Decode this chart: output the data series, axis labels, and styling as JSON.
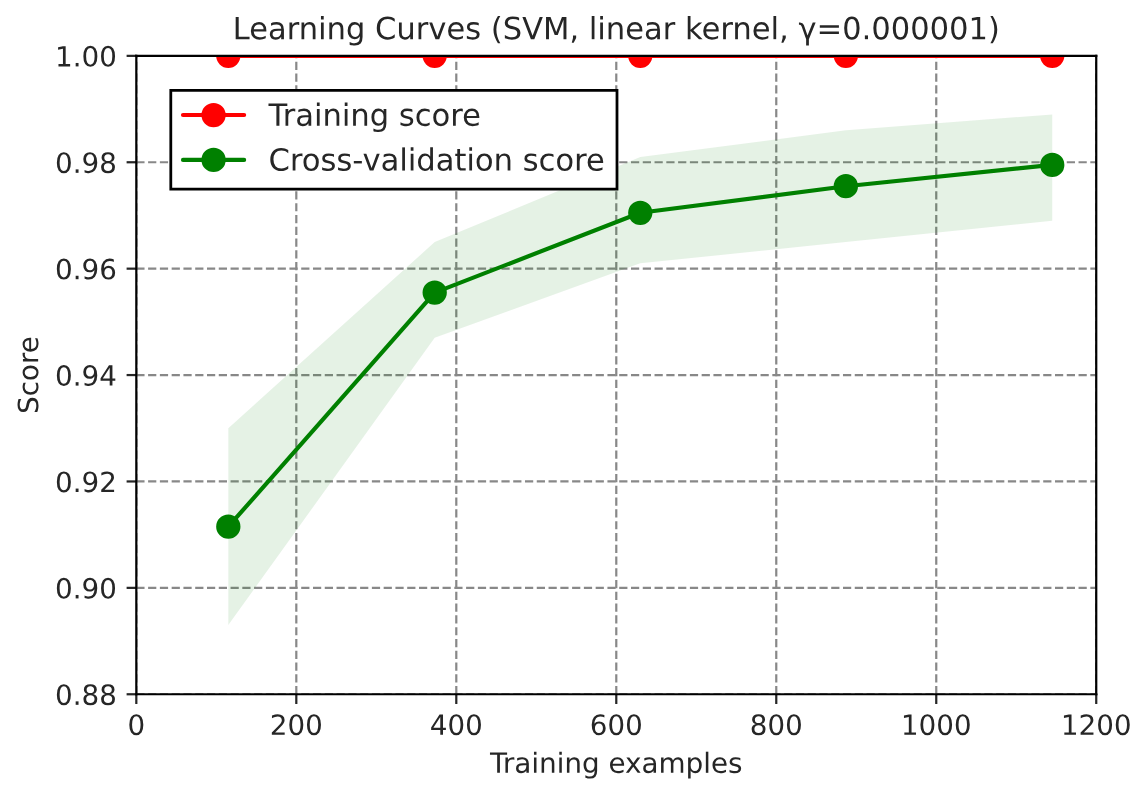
{
  "chart_data": {
    "type": "line",
    "title": "Learning Curves (SVM, linear kernel, γ=0.000001)",
    "xlabel": "Training examples",
    "ylabel": "Score",
    "series": [
      {
        "name": "Training score",
        "color": "#ff0000",
        "x": [
          115,
          373,
          630,
          887,
          1145
        ],
        "values": [
          1.0,
          1.0,
          1.0,
          1.0,
          1.0
        ]
      },
      {
        "name": "Cross-validation score",
        "color": "#008000",
        "x": [
          115,
          373,
          630,
          887,
          1145
        ],
        "values": [
          0.9115,
          0.9555,
          0.9705,
          0.9755,
          0.9795
        ],
        "lower": [
          0.893,
          0.947,
          0.961,
          0.965,
          0.969
        ],
        "upper": [
          0.93,
          0.965,
          0.981,
          0.986,
          0.989
        ]
      }
    ],
    "xlim": [
      0,
      1200
    ],
    "xticks": [
      0,
      200,
      400,
      600,
      800,
      1000,
      1200
    ],
    "ylim": [
      0.88,
      1.0
    ],
    "yticks": [
      {
        "value": 0.88,
        "label": "0.88"
      },
      {
        "value": 0.9,
        "label": "0.90"
      },
      {
        "value": 0.92,
        "label": "0.92"
      },
      {
        "value": 0.94,
        "label": "0.94"
      },
      {
        "value": 0.96,
        "label": "0.96"
      },
      {
        "value": 0.98,
        "label": "0.98"
      },
      {
        "value": 1.0,
        "label": "1.00"
      }
    ],
    "grid": true,
    "legend": "top left",
    "marker": "circle",
    "line_style": "solid"
  }
}
